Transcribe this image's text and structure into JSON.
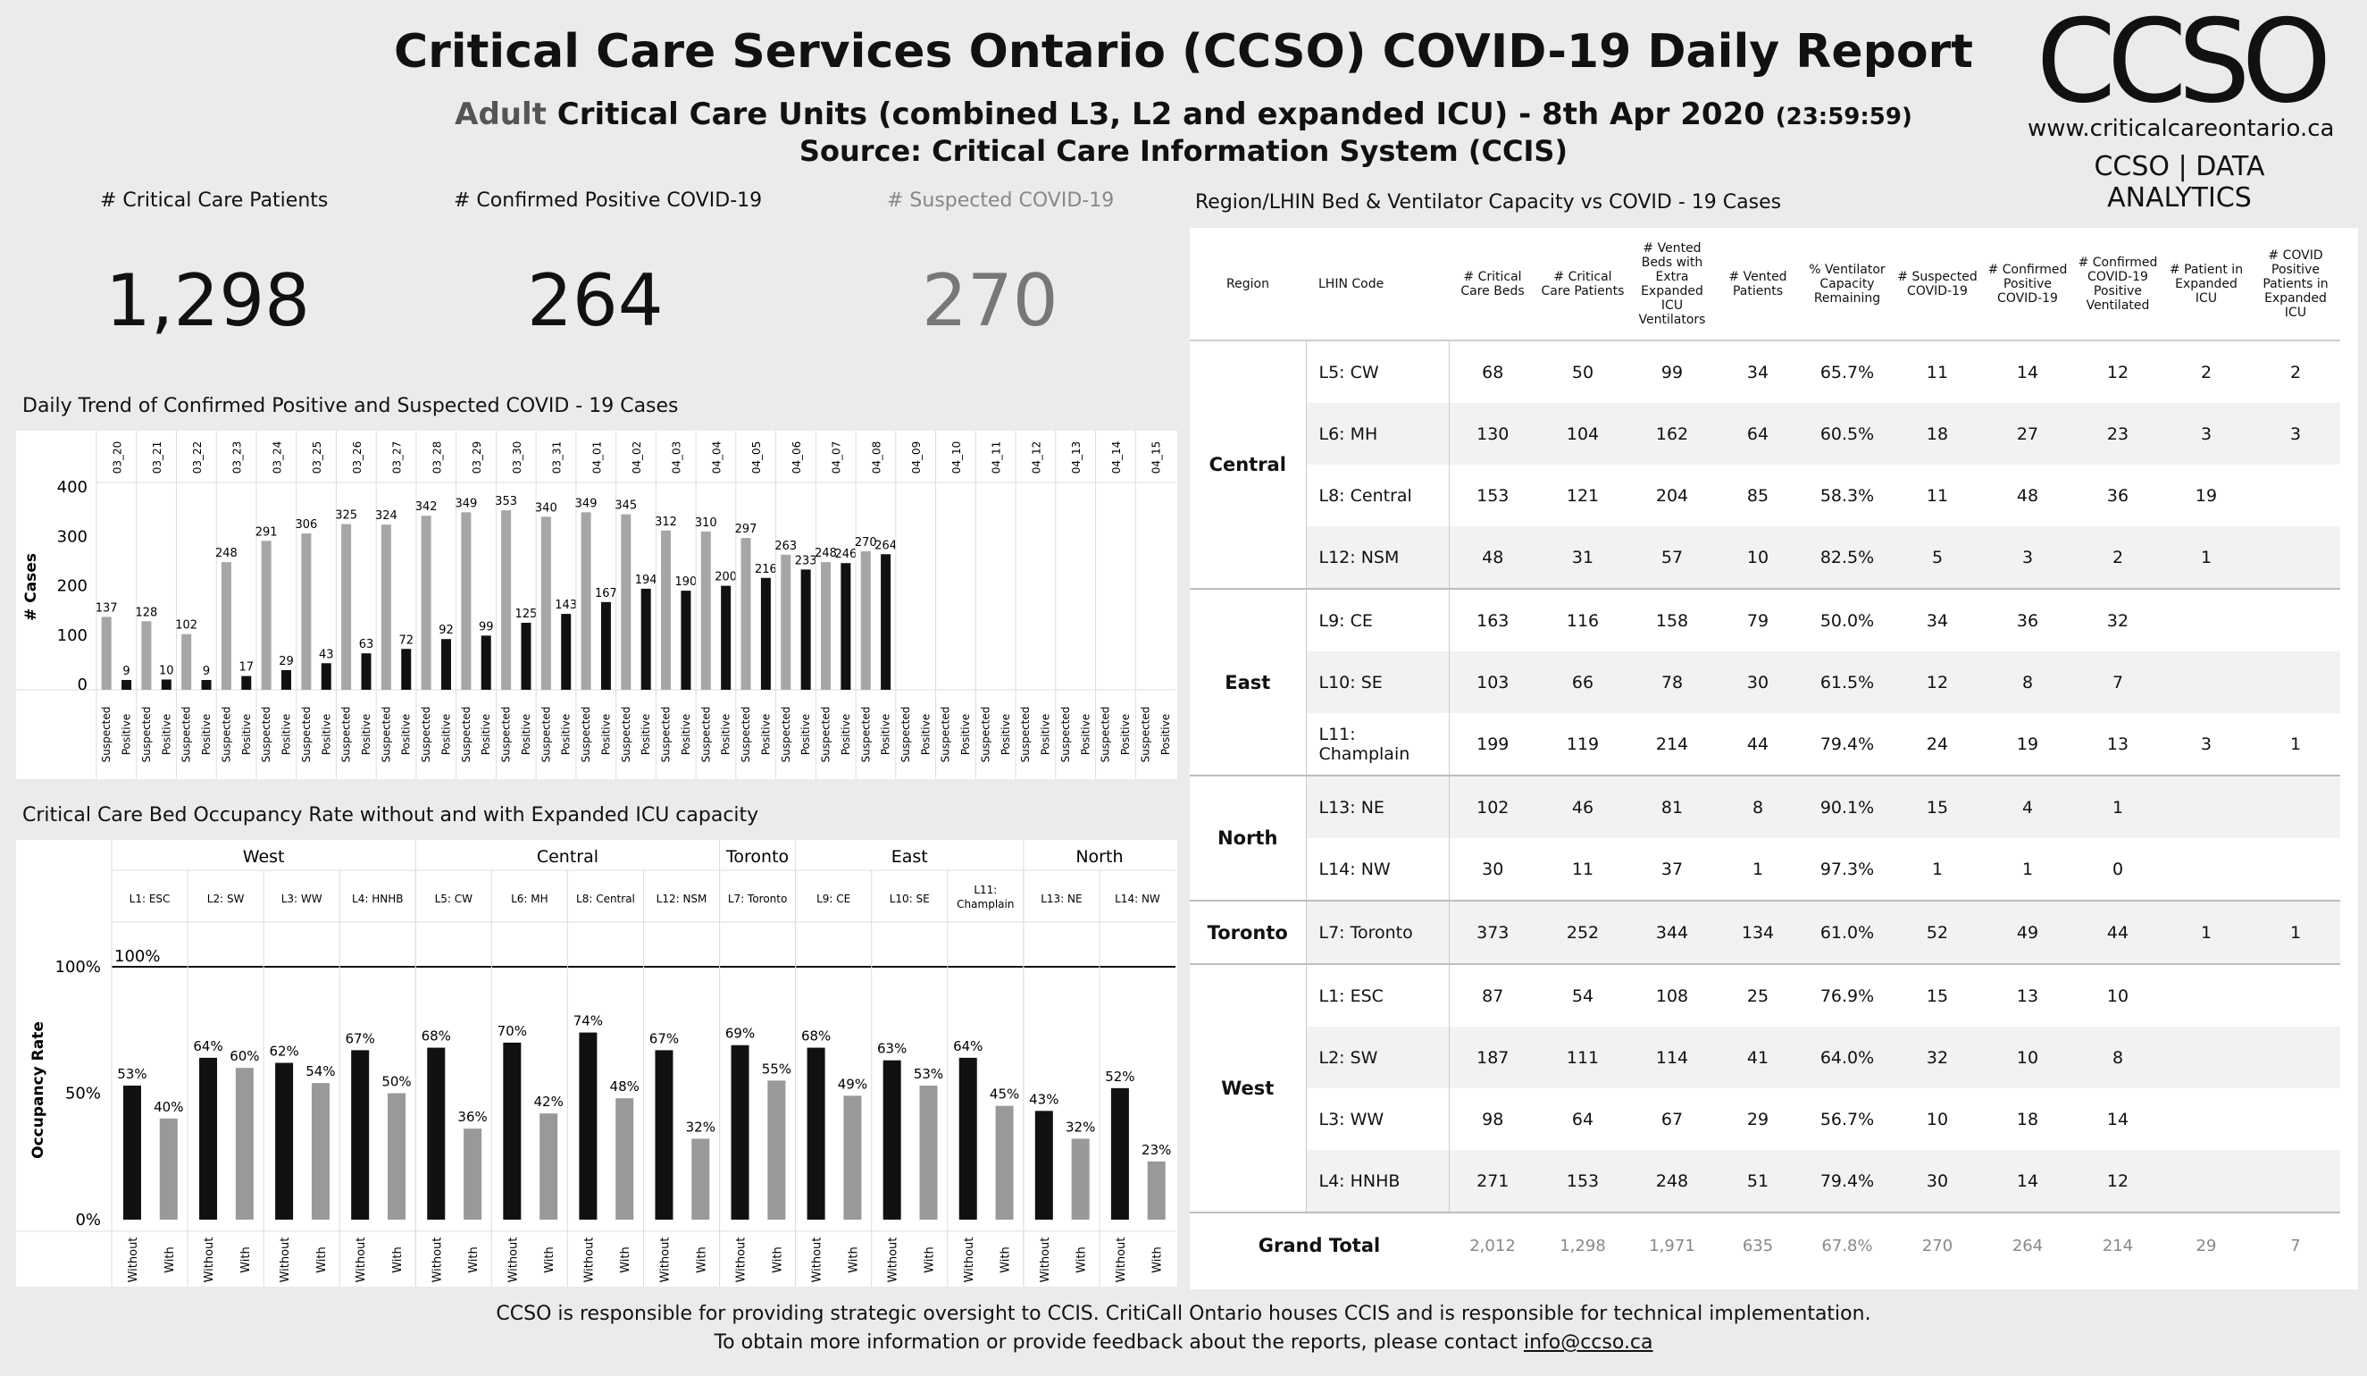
{
  "header": {
    "title": "Critical Care Services Ontario (CCSO) COVID-19 Daily Report",
    "subtitle_prefix": "Adult",
    "subtitle_main": "Critical Care Units (combined L3, L2 and expanded ICU) - 8th Apr 2020",
    "subtitle_time": "(23:59:59)",
    "source": "Source: Critical Care Information System (CCIS)"
  },
  "logo": {
    "text": "CCSO",
    "url": "www.criticalcareontario.ca",
    "tag": "CCSO | DATA ANALYTICS"
  },
  "kpis": {
    "critical_label": "# Critical Care Patients",
    "critical_value": "1,298",
    "confirmed_label": "# Confirmed Positive COVID-19",
    "confirmed_value": "264",
    "suspected_label": "# Suspected COVID-19",
    "suspected_value": "270"
  },
  "colors": {
    "suspected_bar": "#a6a6a6",
    "positive_bar": "#111111",
    "without_bar": "#111111",
    "with_bar": "#999999"
  },
  "chart_data": [
    {
      "type": "bar",
      "title": "Daily Trend of Confirmed Positive and Suspected COVID - 19 Cases",
      "ylabel": "# Cases",
      "ylim": [
        0,
        400
      ],
      "yticks": [
        0,
        100,
        200,
        300,
        400
      ],
      "categories": [
        "03_20",
        "03_21",
        "03_22",
        "03_23",
        "03_24",
        "03_25",
        "03_26",
        "03_27",
        "03_28",
        "03_29",
        "03_30",
        "03_31",
        "04_01",
        "04_02",
        "04_03",
        "04_04",
        "04_05",
        "04_06",
        "04_07",
        "04_08",
        "04_09",
        "04_10",
        "04_11",
        "04_12",
        "04_13",
        "04_14",
        "04_15"
      ],
      "sub_labels": [
        "Suspected",
        "Positive"
      ],
      "series": [
        {
          "name": "Suspected",
          "values": [
            137,
            128,
            102,
            248,
            291,
            306,
            325,
            324,
            342,
            349,
            353,
            340,
            349,
            345,
            312,
            310,
            297,
            263,
            248,
            270,
            null,
            null,
            null,
            null,
            null,
            null,
            null
          ]
        },
        {
          "name": "Positive",
          "values": [
            9,
            10,
            9,
            17,
            29,
            43,
            63,
            72,
            92,
            99,
            125,
            143,
            167,
            194,
            190,
            200,
            216,
            233,
            246,
            264,
            null,
            null,
            null,
            null,
            null,
            null,
            null
          ]
        }
      ]
    },
    {
      "type": "bar",
      "title": "Critical Care Bed Occupancy Rate without and with Expanded ICU capacity",
      "ylabel": "Occupancy Rate",
      "ylim": [
        0,
        100
      ],
      "yticks": [
        "0%",
        "50%",
        "100%"
      ],
      "reference_line": {
        "value": 100,
        "label": "100%"
      },
      "groups": [
        {
          "name": "West",
          "units": [
            "L1: ESC",
            "L2: SW",
            "L3: WW",
            "L4: HNHB"
          ]
        },
        {
          "name": "Central",
          "units": [
            "L5: CW",
            "L6: MH",
            "L8: Central",
            "L12: NSM"
          ]
        },
        {
          "name": "Toronto",
          "units": [
            "L7: Toronto"
          ]
        },
        {
          "name": "East",
          "units": [
            "L9: CE",
            "L10: SE",
            "L11: Champlain"
          ]
        },
        {
          "name": "North",
          "units": [
            "L13: NE",
            "L14: NW"
          ]
        }
      ],
      "categories": [
        "L1: ESC",
        "L2: SW",
        "L3: WW",
        "L4: HNHB",
        "L5: CW",
        "L6: MH",
        "L8: Central",
        "L12: NSM",
        "L7: Toronto",
        "L9: CE",
        "L10: SE",
        "L11: Champlain",
        "L13: NE",
        "L14: NW"
      ],
      "sub_labels": [
        "Without",
        "With"
      ],
      "series": [
        {
          "name": "Without",
          "values": [
            53,
            64,
            62,
            67,
            68,
            70,
            74,
            67,
            69,
            68,
            63,
            64,
            43,
            52
          ]
        },
        {
          "name": "With",
          "values": [
            40,
            60,
            54,
            50,
            36,
            42,
            48,
            32,
            55,
            49,
            53,
            45,
            32,
            23
          ]
        }
      ]
    },
    {
      "type": "table",
      "title": "Region/LHIN Bed & Ventilator Capacity vs COVID - 19 Cases",
      "columns": [
        "Region",
        "LHIN Code",
        "# Critical Care Beds",
        "# Critical Care Patients",
        "# Vented Beds with Extra Expanded ICU Ventilators",
        "# Vented Patients",
        "% Ventilator Capacity Remaining",
        "# Suspected COVID-19",
        "# Confirmed Positive COVID-19",
        "# Confirmed COVID-19 Positive Ventilated",
        "# Patient in Expanded ICU",
        "# COVID Positive Patients in Expanded ICU"
      ],
      "regions": [
        {
          "name": "Central",
          "rows": [
            {
              "lhin": "L5: CW",
              "v": [
                "68",
                "50",
                "99",
                "34",
                "65.7%",
                "11",
                "14",
                "12",
                "2",
                "2"
              ]
            },
            {
              "lhin": "L6: MH",
              "v": [
                "130",
                "104",
                "162",
                "64",
                "60.5%",
                "18",
                "27",
                "23",
                "3",
                "3"
              ]
            },
            {
              "lhin": "L8: Central",
              "v": [
                "153",
                "121",
                "204",
                "85",
                "58.3%",
                "11",
                "48",
                "36",
                "19",
                ""
              ]
            },
            {
              "lhin": "L12: NSM",
              "v": [
                "48",
                "31",
                "57",
                "10",
                "82.5%",
                "5",
                "3",
                "2",
                "1",
                ""
              ]
            }
          ]
        },
        {
          "name": "East",
          "rows": [
            {
              "lhin": "L9: CE",
              "v": [
                "163",
                "116",
                "158",
                "79",
                "50.0%",
                "34",
                "36",
                "32",
                "",
                ""
              ]
            },
            {
              "lhin": "L10: SE",
              "v": [
                "103",
                "66",
                "78",
                "30",
                "61.5%",
                "12",
                "8",
                "7",
                "",
                ""
              ]
            },
            {
              "lhin": "L11: Champlain",
              "v": [
                "199",
                "119",
                "214",
                "44",
                "79.4%",
                "24",
                "19",
                "13",
                "3",
                "1"
              ]
            }
          ]
        },
        {
          "name": "North",
          "rows": [
            {
              "lhin": "L13: NE",
              "v": [
                "102",
                "46",
                "81",
                "8",
                "90.1%",
                "15",
                "4",
                "1",
                "",
                ""
              ]
            },
            {
              "lhin": "L14: NW",
              "v": [
                "30",
                "11",
                "37",
                "1",
                "97.3%",
                "1",
                "1",
                "0",
                "",
                ""
              ]
            }
          ]
        },
        {
          "name": "Toronto",
          "rows": [
            {
              "lhin": "L7: Toronto",
              "v": [
                "373",
                "252",
                "344",
                "134",
                "61.0%",
                "52",
                "49",
                "44",
                "1",
                "1"
              ]
            }
          ]
        },
        {
          "name": "West",
          "rows": [
            {
              "lhin": "L1: ESC",
              "v": [
                "87",
                "54",
                "108",
                "25",
                "76.9%",
                "15",
                "13",
                "10",
                "",
                ""
              ]
            },
            {
              "lhin": "L2: SW",
              "v": [
                "187",
                "111",
                "114",
                "41",
                "64.0%",
                "32",
                "10",
                "8",
                "",
                ""
              ]
            },
            {
              "lhin": "L3: WW",
              "v": [
                "98",
                "64",
                "67",
                "29",
                "56.7%",
                "10",
                "18",
                "14",
                "",
                ""
              ]
            },
            {
              "lhin": "L4: HNHB",
              "v": [
                "271",
                "153",
                "248",
                "51",
                "79.4%",
                "30",
                "14",
                "12",
                "",
                ""
              ]
            }
          ]
        }
      ],
      "grand_total": {
        "label": "Grand Total",
        "v": [
          "2,012",
          "1,298",
          "1,971",
          "635",
          "67.8%",
          "270",
          "264",
          "214",
          "29",
          "7"
        ]
      }
    }
  ],
  "footer": {
    "line1": "CCSO is responsible for providing strategic oversight to CCIS. CritiCall Ontario houses CCIS and is responsible for technical implementation.",
    "line2_prefix": "To obtain more information or provide feedback about the reports, please contact ",
    "email": "info@ccso.ca"
  }
}
